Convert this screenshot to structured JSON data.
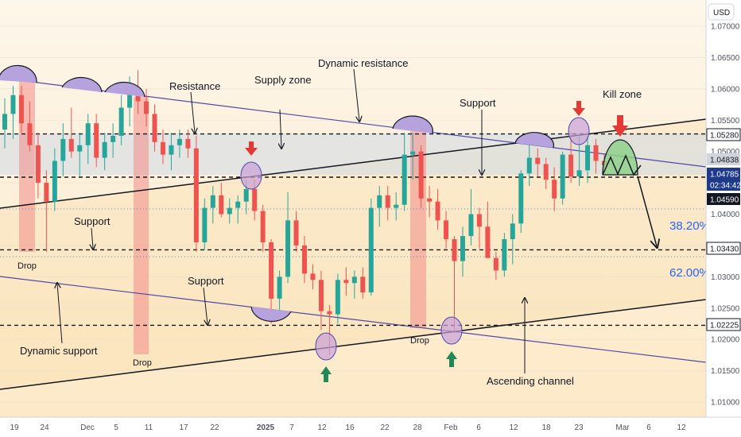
{
  "chart_data": {
    "type": "candlestick",
    "symbol_currency": "USD",
    "y_axis": {
      "range": [
        1.006,
        1.075
      ],
      "ticks": [
        "1.07000",
        "1.06500",
        "1.06000",
        "1.05500",
        "1.05000",
        "1.04500",
        "1.04000",
        "1.03500",
        "1.03000",
        "1.02500",
        "1.02000",
        "1.01500",
        "1.01000"
      ]
    },
    "x_axis": {
      "ticks": [
        "19",
        "24",
        "Dec",
        "5",
        "11",
        "17",
        "22",
        "2025",
        "7",
        "12",
        "16",
        "22",
        "28",
        "Feb",
        "6",
        "12",
        "18",
        "23",
        "Mar",
        "6",
        "12"
      ]
    },
    "price_labels": [
      {
        "value": "1.05280",
        "style": "white"
      },
      {
        "value": "1.04838",
        "style": "gray"
      },
      {
        "value": "1.04785",
        "style": "blue"
      },
      {
        "value": "02:34:42",
        "style": "blue"
      },
      {
        "value": "1.04590",
        "style": "black"
      },
      {
        "value": "1.03430",
        "style": "white"
      },
      {
        "value": "1.02225",
        "style": "white"
      }
    ],
    "horizontal_levels": [
      1.0528,
      1.0459,
      1.0343,
      1.02225
    ],
    "fib_levels": [
      {
        "label": "38.20%",
        "value": 1.0397
      },
      {
        "label": "62.00%",
        "value": 1.0314
      }
    ],
    "annotations": {
      "dynamic_resistance": "Dynamic resistance",
      "supply_zone": "Supply zone",
      "resistance": "Resistance",
      "support_top": "Support",
      "kill_zone": "Kill zone",
      "support_left": "Support",
      "support_mid": "Support",
      "dynamic_support": "Dynamic support",
      "ascending_channel": "Ascending channel",
      "drop_1": "Drop",
      "drop_2": "Drop",
      "drop_3": "Drop"
    },
    "series": [
      {
        "date": "Nov 15",
        "open": 1.0535,
        "high": 1.0585,
        "low": 1.0505,
        "close": 1.056
      },
      {
        "date": "Nov 18",
        "open": 1.056,
        "high": 1.0605,
        "low": 1.052,
        "close": 1.059
      },
      {
        "date": "Nov 19",
        "open": 1.059,
        "high": 1.0605,
        "low": 1.053,
        "close": 1.0545
      },
      {
        "date": "Nov 20",
        "open": 1.0545,
        "high": 1.058,
        "low": 1.05,
        "close": 1.051
      },
      {
        "date": "Nov 21",
        "open": 1.051,
        "high": 1.053,
        "low": 1.0425,
        "close": 1.045
      },
      {
        "date": "Nov 22",
        "open": 1.045,
        "high": 1.047,
        "low": 1.034,
        "close": 1.042
      },
      {
        "date": "Nov 25",
        "open": 1.042,
        "high": 1.0505,
        "low": 1.0405,
        "close": 1.0485
      },
      {
        "date": "Nov 26",
        "open": 1.0485,
        "high": 1.0545,
        "low": 1.046,
        "close": 1.052
      },
      {
        "date": "Nov 27",
        "open": 1.052,
        "high": 1.057,
        "low": 1.049,
        "close": 1.05
      },
      {
        "date": "Nov 28",
        "open": 1.05,
        "high": 1.053,
        "low": 1.046,
        "close": 1.051
      },
      {
        "date": "Nov 29",
        "open": 1.051,
        "high": 1.056,
        "low": 1.048,
        "close": 1.0545
      },
      {
        "date": "Dec 2",
        "open": 1.0545,
        "high": 1.056,
        "low": 1.0475,
        "close": 1.049
      },
      {
        "date": "Dec 3",
        "open": 1.049,
        "high": 1.053,
        "low": 1.047,
        "close": 1.0515
      },
      {
        "date": "Dec 4",
        "open": 1.0515,
        "high": 1.0545,
        "low": 1.049,
        "close": 1.0525
      },
      {
        "date": "Dec 5",
        "open": 1.0525,
        "high": 1.059,
        "low": 1.051,
        "close": 1.057
      },
      {
        "date": "Dec 6",
        "open": 1.057,
        "high": 1.062,
        "low": 1.054,
        "close": 1.06
      },
      {
        "date": "Dec 9",
        "open": 1.06,
        "high": 1.063,
        "low": 1.056,
        "close": 1.058
      },
      {
        "date": "Dec 10",
        "open": 1.058,
        "high": 1.06,
        "low": 1.054,
        "close": 1.056
      },
      {
        "date": "Dec 11",
        "open": 1.056,
        "high": 1.0575,
        "low": 1.05,
        "close": 1.0515
      },
      {
        "date": "Dec 12",
        "open": 1.0515,
        "high": 1.0535,
        "low": 1.048,
        "close": 1.0495
      },
      {
        "date": "Dec 13",
        "open": 1.0495,
        "high": 1.053,
        "low": 1.047,
        "close": 1.051
      },
      {
        "date": "Dec 16",
        "open": 1.051,
        "high": 1.0535,
        "low": 1.049,
        "close": 1.052
      },
      {
        "date": "Dec 17",
        "open": 1.052,
        "high": 1.0535,
        "low": 1.049,
        "close": 1.0505
      },
      {
        "date": "Dec 18",
        "open": 1.0505,
        "high": 1.0525,
        "low": 1.034,
        "close": 1.0355
      },
      {
        "date": "Dec 19",
        "open": 1.0355,
        "high": 1.0425,
        "low": 1.0343,
        "close": 1.041
      },
      {
        "date": "Dec 20",
        "open": 1.041,
        "high": 1.0445,
        "low": 1.0385,
        "close": 1.043
      },
      {
        "date": "Dec 23",
        "open": 1.043,
        "high": 1.045,
        "low": 1.0395,
        "close": 1.04
      },
      {
        "date": "Dec 24",
        "open": 1.04,
        "high": 1.0425,
        "low": 1.0385,
        "close": 1.041
      },
      {
        "date": "Dec 26",
        "open": 1.041,
        "high": 1.043,
        "low": 1.0385,
        "close": 1.042
      },
      {
        "date": "Dec 27",
        "open": 1.042,
        "high": 1.0455,
        "low": 1.04,
        "close": 1.044
      },
      {
        "date": "Dec 30",
        "open": 1.044,
        "high": 1.0455,
        "low": 1.039,
        "close": 1.0405
      },
      {
        "date": "Dec 31",
        "open": 1.0405,
        "high": 1.0415,
        "low": 1.034,
        "close": 1.0355
      },
      {
        "date": "Jan 2",
        "open": 1.0355,
        "high": 1.036,
        "low": 1.0225,
        "close": 1.0265
      },
      {
        "date": "Jan 3",
        "open": 1.0265,
        "high": 1.031,
        "low": 1.024,
        "close": 1.03
      },
      {
        "date": "Jan 6",
        "open": 1.03,
        "high": 1.0435,
        "low": 1.029,
        "close": 1.039
      },
      {
        "date": "Jan 7",
        "open": 1.039,
        "high": 1.0405,
        "low": 1.034,
        "close": 1.035
      },
      {
        "date": "Jan 8",
        "open": 1.035,
        "high": 1.0365,
        "low": 1.029,
        "close": 1.0305
      },
      {
        "date": "Jan 9",
        "open": 1.0305,
        "high": 1.032,
        "low": 1.028,
        "close": 1.0295
      },
      {
        "date": "Jan 10",
        "open": 1.0295,
        "high": 1.031,
        "low": 1.0215,
        "close": 1.0245
      },
      {
        "date": "Jan 13",
        "open": 1.0245,
        "high": 1.0255,
        "low": 1.0175,
        "close": 1.024
      },
      {
        "date": "Jan 14",
        "open": 1.024,
        "high": 1.0305,
        "low": 1.0225,
        "close": 1.0295
      },
      {
        "date": "Jan 15",
        "open": 1.0295,
        "high": 1.0315,
        "low": 1.027,
        "close": 1.029
      },
      {
        "date": "Jan 16",
        "open": 1.029,
        "high": 1.031,
        "low": 1.0265,
        "close": 1.03
      },
      {
        "date": "Jan 17",
        "open": 1.03,
        "high": 1.0315,
        "low": 1.0265,
        "close": 1.0275
      },
      {
        "date": "Jan 20",
        "open": 1.0275,
        "high": 1.0425,
        "low": 1.027,
        "close": 1.041
      },
      {
        "date": "Jan 21",
        "open": 1.041,
        "high": 1.0445,
        "low": 1.038,
        "close": 1.043
      },
      {
        "date": "Jan 22",
        "open": 1.043,
        "high": 1.0445,
        "low": 1.039,
        "close": 1.041
      },
      {
        "date": "Jan 23",
        "open": 1.041,
        "high": 1.0435,
        "low": 1.039,
        "close": 1.0415
      },
      {
        "date": "Jan 24",
        "open": 1.0415,
        "high": 1.053,
        "low": 1.0405,
        "close": 1.0495
      },
      {
        "date": "Jan 27",
        "open": 1.0495,
        "high": 1.053,
        "low": 1.0455,
        "close": 1.05
      },
      {
        "date": "Jan 28",
        "open": 1.05,
        "high": 1.051,
        "low": 1.041,
        "close": 1.0425
      },
      {
        "date": "Jan 29",
        "open": 1.0425,
        "high": 1.0445,
        "low": 1.0395,
        "close": 1.042
      },
      {
        "date": "Jan 30",
        "open": 1.042,
        "high": 1.044,
        "low": 1.0375,
        "close": 1.039
      },
      {
        "date": "Jan 31",
        "open": 1.039,
        "high": 1.0405,
        "low": 1.0345,
        "close": 1.036
      },
      {
        "date": "Feb 3",
        "open": 1.036,
        "high": 1.0365,
        "low": 1.021,
        "close": 1.0325
      },
      {
        "date": "Feb 4",
        "open": 1.0325,
        "high": 1.038,
        "low": 1.03,
        "close": 1.0365
      },
      {
        "date": "Feb 5",
        "open": 1.0365,
        "high": 1.044,
        "low": 1.035,
        "close": 1.04
      },
      {
        "date": "Feb 6",
        "open": 1.04,
        "high": 1.041,
        "low": 1.0345,
        "close": 1.038
      },
      {
        "date": "Feb 7",
        "open": 1.038,
        "high": 1.042,
        "low": 1.033,
        "close": 1.033
      },
      {
        "date": "Feb 10",
        "open": 1.033,
        "high": 1.034,
        "low": 1.0295,
        "close": 1.031
      },
      {
        "date": "Feb 11",
        "open": 1.031,
        "high": 1.037,
        "low": 1.03,
        "close": 1.036
      },
      {
        "date": "Feb 12",
        "open": 1.036,
        "high": 1.04,
        "low": 1.032,
        "close": 1.0385
      },
      {
        "date": "Feb 13",
        "open": 1.0385,
        "high": 1.047,
        "low": 1.037,
        "close": 1.0465
      },
      {
        "date": "Feb 14",
        "open": 1.0465,
        "high": 1.0515,
        "low": 1.0445,
        "close": 1.049
      },
      {
        "date": "Feb 17",
        "open": 1.049,
        "high": 1.0505,
        "low": 1.046,
        "close": 1.048
      },
      {
        "date": "Feb 18",
        "open": 1.048,
        "high": 1.049,
        "low": 1.044,
        "close": 1.0455
      },
      {
        "date": "Feb 19",
        "open": 1.0455,
        "high": 1.0475,
        "low": 1.0405,
        "close": 1.0425
      },
      {
        "date": "Feb 20",
        "open": 1.0425,
        "high": 1.05,
        "low": 1.0415,
        "close": 1.0495
      },
      {
        "date": "Feb 21",
        "open": 1.0495,
        "high": 1.053,
        "low": 1.045,
        "close": 1.046
      },
      {
        "date": "Feb 24",
        "open": 1.046,
        "high": 1.0528,
        "low": 1.0445,
        "close": 1.047
      },
      {
        "date": "Feb 25",
        "open": 1.047,
        "high": 1.0525,
        "low": 1.045,
        "close": 1.051
      },
      {
        "date": "Feb 26",
        "open": 1.051,
        "high": 1.052,
        "low": 1.0465,
        "close": 1.0485
      },
      {
        "date": "Feb 27",
        "open": 1.0485,
        "high": 1.0495,
        "low": 1.0465,
        "close": 1.0478
      }
    ]
  }
}
